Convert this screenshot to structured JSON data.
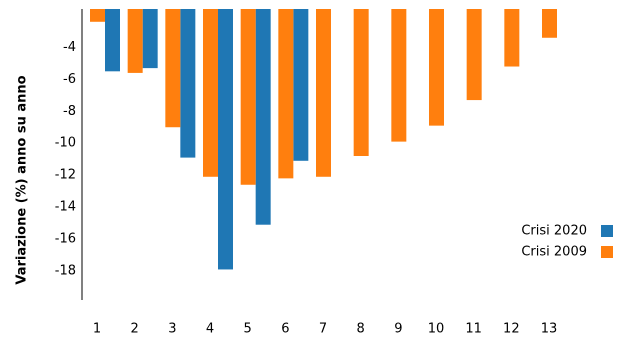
{
  "chart_data": {
    "type": "bar",
    "y_label": "Variazione (%) anno su anno",
    "categories": [
      "1",
      "2",
      "3",
      "4",
      "5",
      "6",
      "7",
      "8",
      "9",
      "10",
      "11",
      "12",
      "13"
    ],
    "series": [
      {
        "name": "Crisi 2020",
        "color": "#1f77b4",
        "values": [
          -5.5,
          -5.3,
          -10.9,
          -17.9,
          -15.1,
          -11.1,
          null,
          null,
          null,
          null,
          null,
          null,
          null
        ]
      },
      {
        "name": "Crisi 2009",
        "color": "#ff7f0e",
        "values": [
          -2.4,
          -5.6,
          -9.0,
          -12.1,
          -12.6,
          -12.2,
          -12.1,
          -10.8,
          -9.9,
          -8.9,
          -7.3,
          -5.2,
          -3.4
        ]
      }
    ],
    "ylim": [
      -20,
      -1.6
    ],
    "yticks": [
      -18,
      -16,
      -14,
      -12,
      -10,
      -8,
      -6,
      -4
    ],
    "legend": "right"
  }
}
